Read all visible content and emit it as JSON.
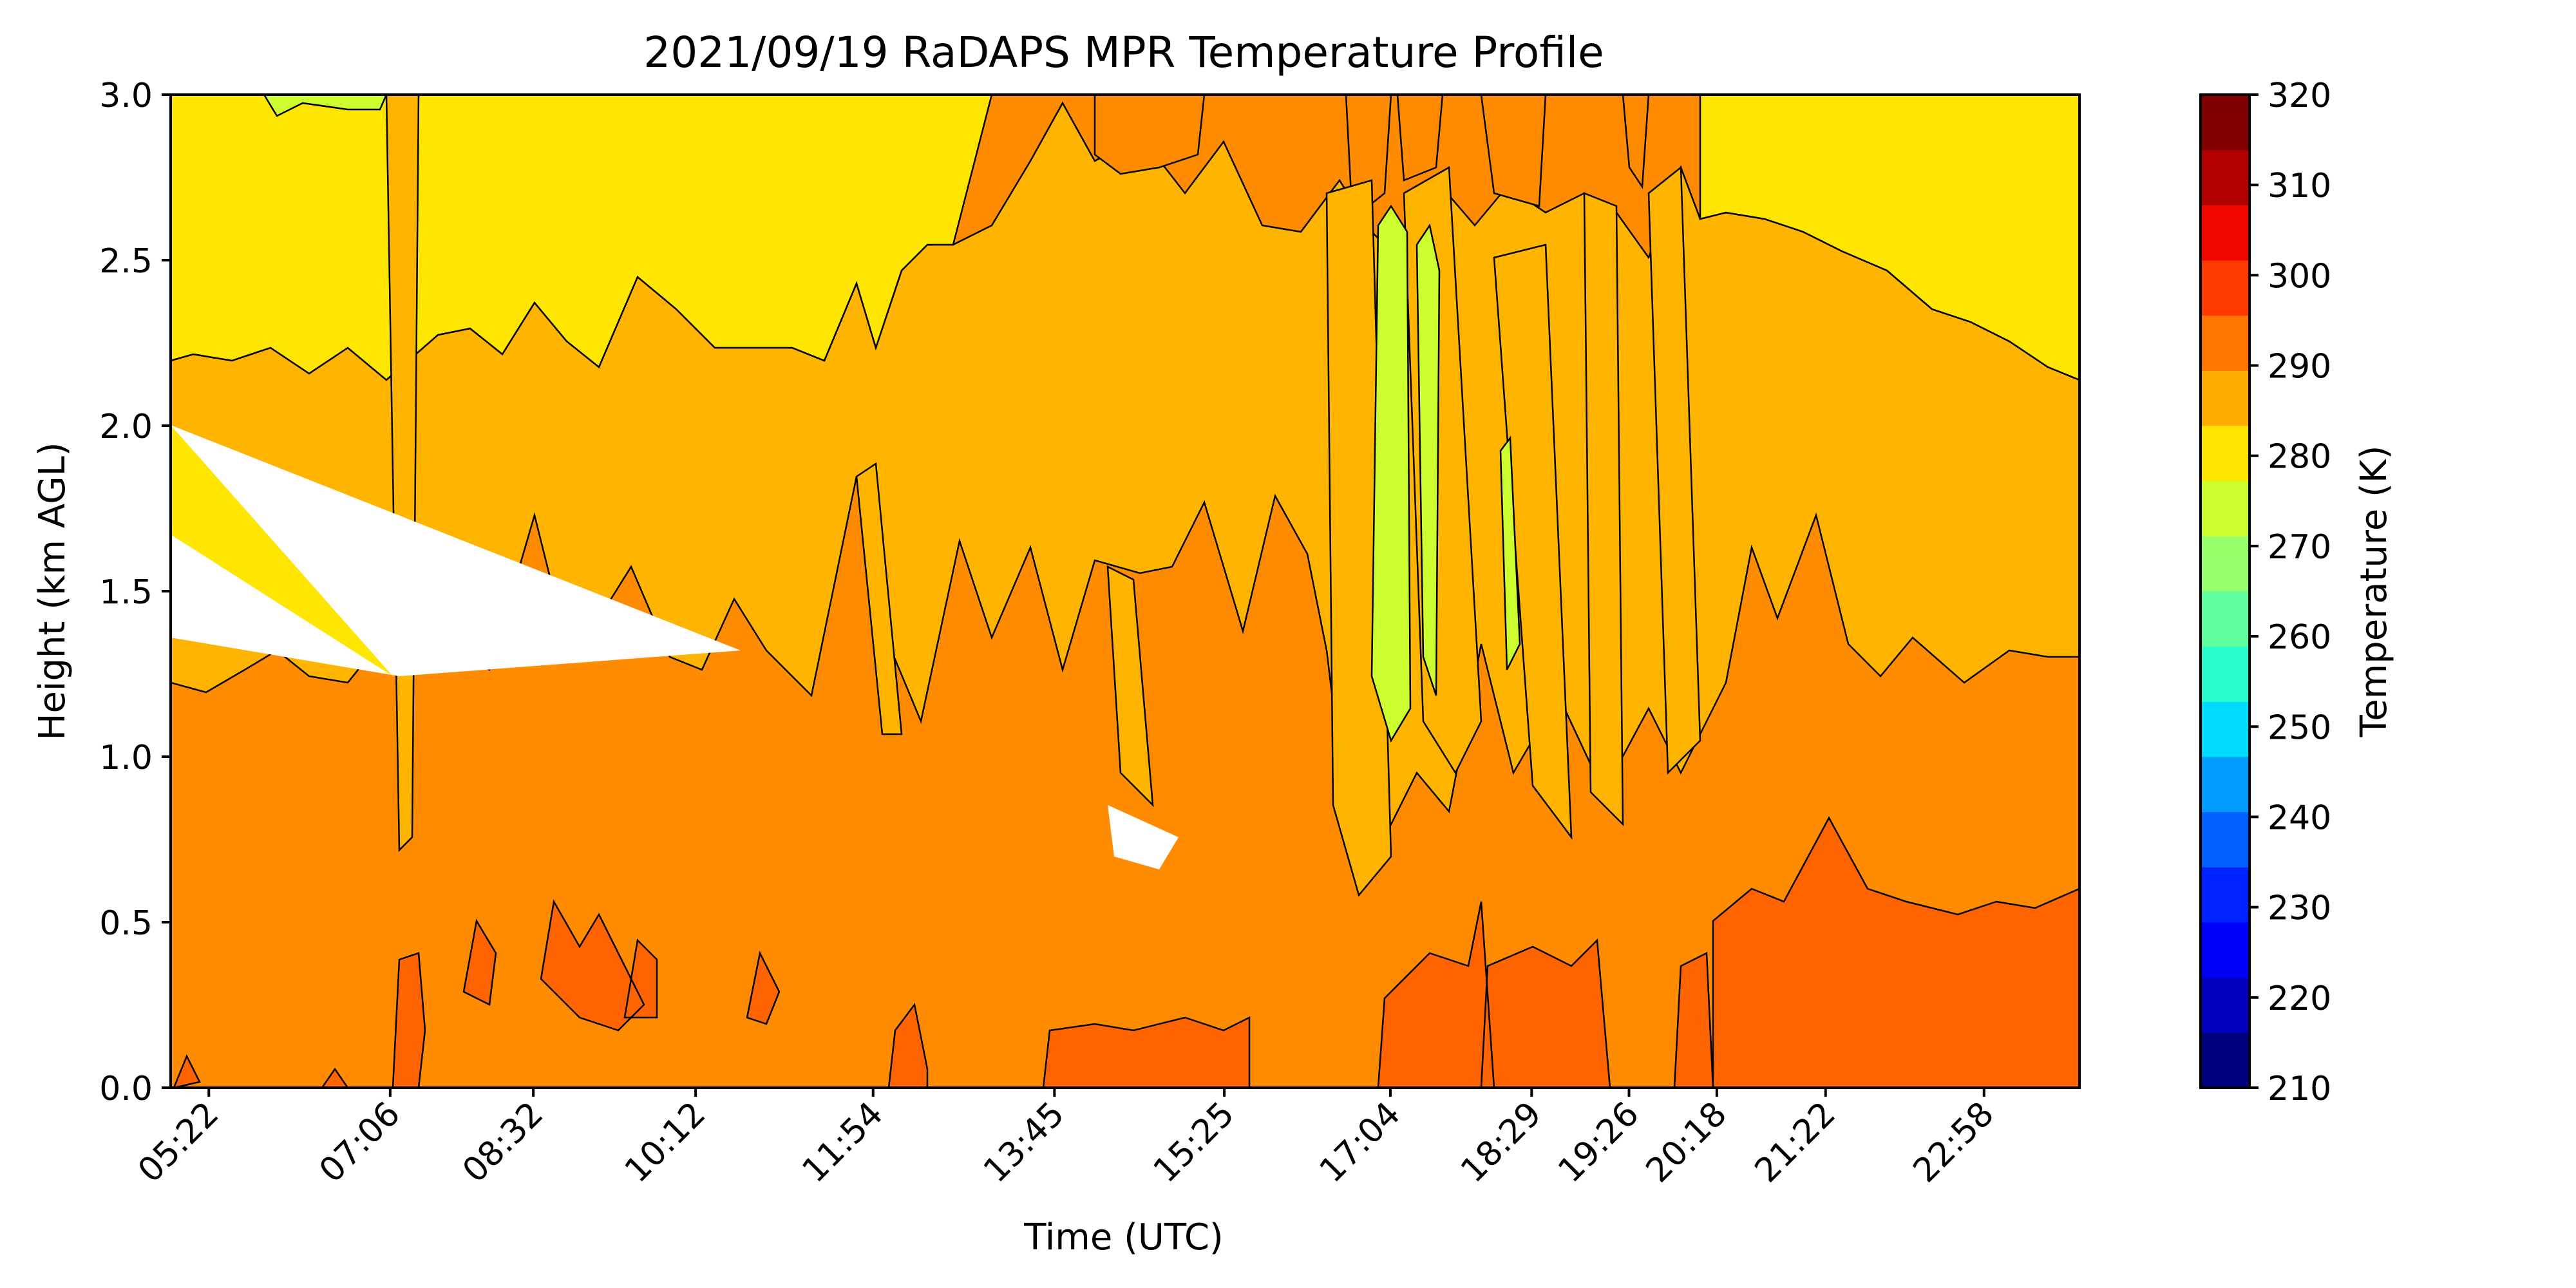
{
  "chart_data": {
    "type": "heatmap",
    "subtype": "filled-contour",
    "title": "2021/09/19 RaDAPS MPR Temperature Profile",
    "xlabel": "Time (UTC)",
    "ylabel": "Height (km AGL)",
    "x_tick_labels": [
      "05:22",
      "07:06",
      "08:32",
      "10:12",
      "11:54",
      "13:45",
      "15:25",
      "17:04",
      "18:29",
      "19:26",
      "20:18",
      "21:22",
      "22:58"
    ],
    "x_tick_fraction": [
      0.02,
      0.115,
      0.19,
      0.275,
      0.368,
      0.463,
      0.552,
      0.639,
      0.713,
      0.764,
      0.81,
      0.867,
      0.95
    ],
    "y_ticks": [
      0.0,
      0.5,
      1.0,
      1.5,
      2.0,
      2.5,
      3.0
    ],
    "ylim": [
      0.0,
      3.0
    ],
    "grid": false,
    "colorbar": {
      "label": "Temperature (K)",
      "ticks": [
        210,
        220,
        230,
        240,
        250,
        260,
        270,
        280,
        290,
        300,
        310,
        320
      ],
      "range": [
        210,
        320
      ],
      "step": 5,
      "colormap": "jet",
      "colors": [
        "#00007f",
        "#0000bd",
        "#0000fa",
        "#0022ff",
        "#0060ff",
        "#009dff",
        "#00dcfe",
        "#29ffce",
        "#5fffa0",
        "#96ff6a",
        "#cdff30",
        "#ffe600",
        "#ffab00",
        "#ff7500",
        "#ff3a00",
        "#f10700",
        "#b20000",
        "#800000"
      ]
    },
    "bands": [
      {
        "range_K": [
          280,
          285
        ],
        "color": "#ffe600",
        "height_km": {
          "00:00": [
            2.15,
            3.0
          ],
          "mid": "upper band above ~2.2-2.6 km",
          "end": [
            2.15,
            3.0
          ]
        }
      },
      {
        "range_K": [
          285,
          290
        ],
        "color": "#ffb400",
        "height_km": "middle layer approx 1.2 to 2.2 km"
      },
      {
        "range_K": [
          290,
          295
        ],
        "color": "#ff8c00",
        "height_km": "lower layer approx 0.3 to 1.3 km"
      },
      {
        "range_K": [
          295,
          300
        ],
        "color": "#ff6400",
        "height_km": "surface patches below ~0.5 km"
      },
      {
        "range_K": [
          275,
          280
        ],
        "color": "#cdff30",
        "height_km": "thin columns near 17:04 between 1.0 and 2.7 km"
      }
    ],
    "missing_data": "white wedge between 1.2 and 2.0 km from start to ~10:30"
  },
  "colors": {
    "band_280_285": "#ffe600",
    "band_285_290": "#ffb400",
    "band_290_295": "#ff8c00",
    "band_295_300": "#ff6400",
    "band_275_280": "#cdff30",
    "contour_line": "#000000"
  }
}
